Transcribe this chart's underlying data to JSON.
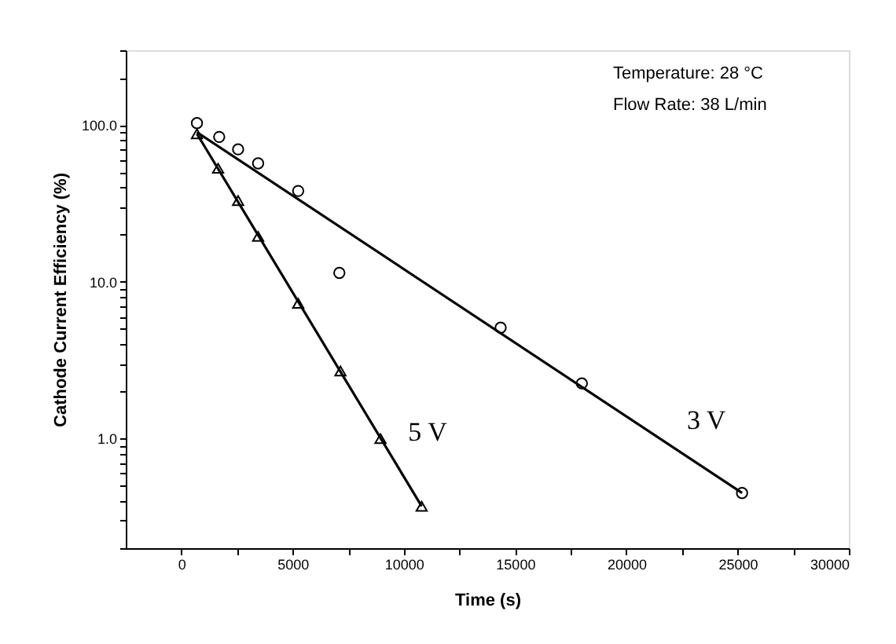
{
  "chart_data": {
    "type": "scatter",
    "xlabel": "Time (s)",
    "ylabel": "Cathode Current Efficiency (%)",
    "annotations": [
      "Temperature: 28 °C",
      "Flow Rate: 38 L/min"
    ],
    "log": "y",
    "grid": false,
    "xlim": [
      -2500,
      30000
    ],
    "ylim": [
      0.2,
      300
    ],
    "xticks": [
      0,
      {
        "value": 2500,
        "label": null
      },
      5000,
      {
        "value": 7500,
        "label": null
      },
      10000,
      {
        "value": 12500,
        "label": null
      },
      15000,
      {
        "value": 17500,
        "label": null
      },
      20000,
      {
        "value": 22500,
        "label": null
      },
      25000,
      {
        "value": 27500,
        "label": null
      },
      30000
    ],
    "yticks": [
      {
        "value": 0.2,
        "label": null
      },
      {
        "value": 0.3,
        "label": null
      },
      {
        "value": 0.4,
        "label": null
      },
      {
        "value": 0.5,
        "label": null
      },
      {
        "value": 0.6,
        "label": null
      },
      {
        "value": 0.7,
        "label": null
      },
      {
        "value": 0.8,
        "label": null
      },
      {
        "value": 0.9,
        "label": null
      },
      {
        "value": 1,
        "label": "1.0"
      },
      {
        "value": 2,
        "label": null
      },
      {
        "value": 3,
        "label": null
      },
      {
        "value": 4,
        "label": null
      },
      {
        "value": 5,
        "label": null
      },
      {
        "value": 6,
        "label": null
      },
      {
        "value": 7,
        "label": null
      },
      {
        "value": 8,
        "label": null
      },
      {
        "value": 9,
        "label": null
      },
      {
        "value": 10,
        "label": "10.0"
      },
      {
        "value": 20,
        "label": null
      },
      {
        "value": 30,
        "label": null
      },
      {
        "value": 40,
        "label": null
      },
      {
        "value": 50,
        "label": null
      },
      {
        "value": 60,
        "label": null
      },
      {
        "value": 70,
        "label": null
      },
      {
        "value": 80,
        "label": null
      },
      {
        "value": 90,
        "label": null
      },
      {
        "value": 100,
        "label": "100.0"
      },
      {
        "value": 200,
        "label": null
      },
      {
        "value": 300,
        "label": null
      }
    ],
    "series": [
      {
        "marker": "circle",
        "color": "#000000",
        "x": [
          700,
          1700,
          2550,
          3450,
          5250,
          7100,
          14350,
          18000,
          25200
        ],
        "values": [
          103,
          84,
          70,
          57,
          38,
          11.4,
          5.1,
          2.25,
          0.45
        ]
      },
      {
        "marker": "triangle",
        "color": "#000000",
        "x": [
          700,
          1650,
          2550,
          3450,
          5250,
          7150,
          8950,
          10800
        ],
        "values": [
          88,
          53,
          33,
          19.5,
          7.3,
          2.7,
          1.0,
          0.37
        ]
      },
      {
        "type": "line",
        "name": "3 V",
        "marker": "none",
        "line_style": "solid",
        "color": "#000000",
        "x": [
          700,
          25200
        ],
        "values": [
          90,
          0.45
        ]
      },
      {
        "type": "line",
        "name": "5 V",
        "marker": "none",
        "line_style": "solid",
        "color": "#000000",
        "x": [
          700,
          10800
        ],
        "values": [
          88,
          0.37
        ]
      }
    ]
  }
}
